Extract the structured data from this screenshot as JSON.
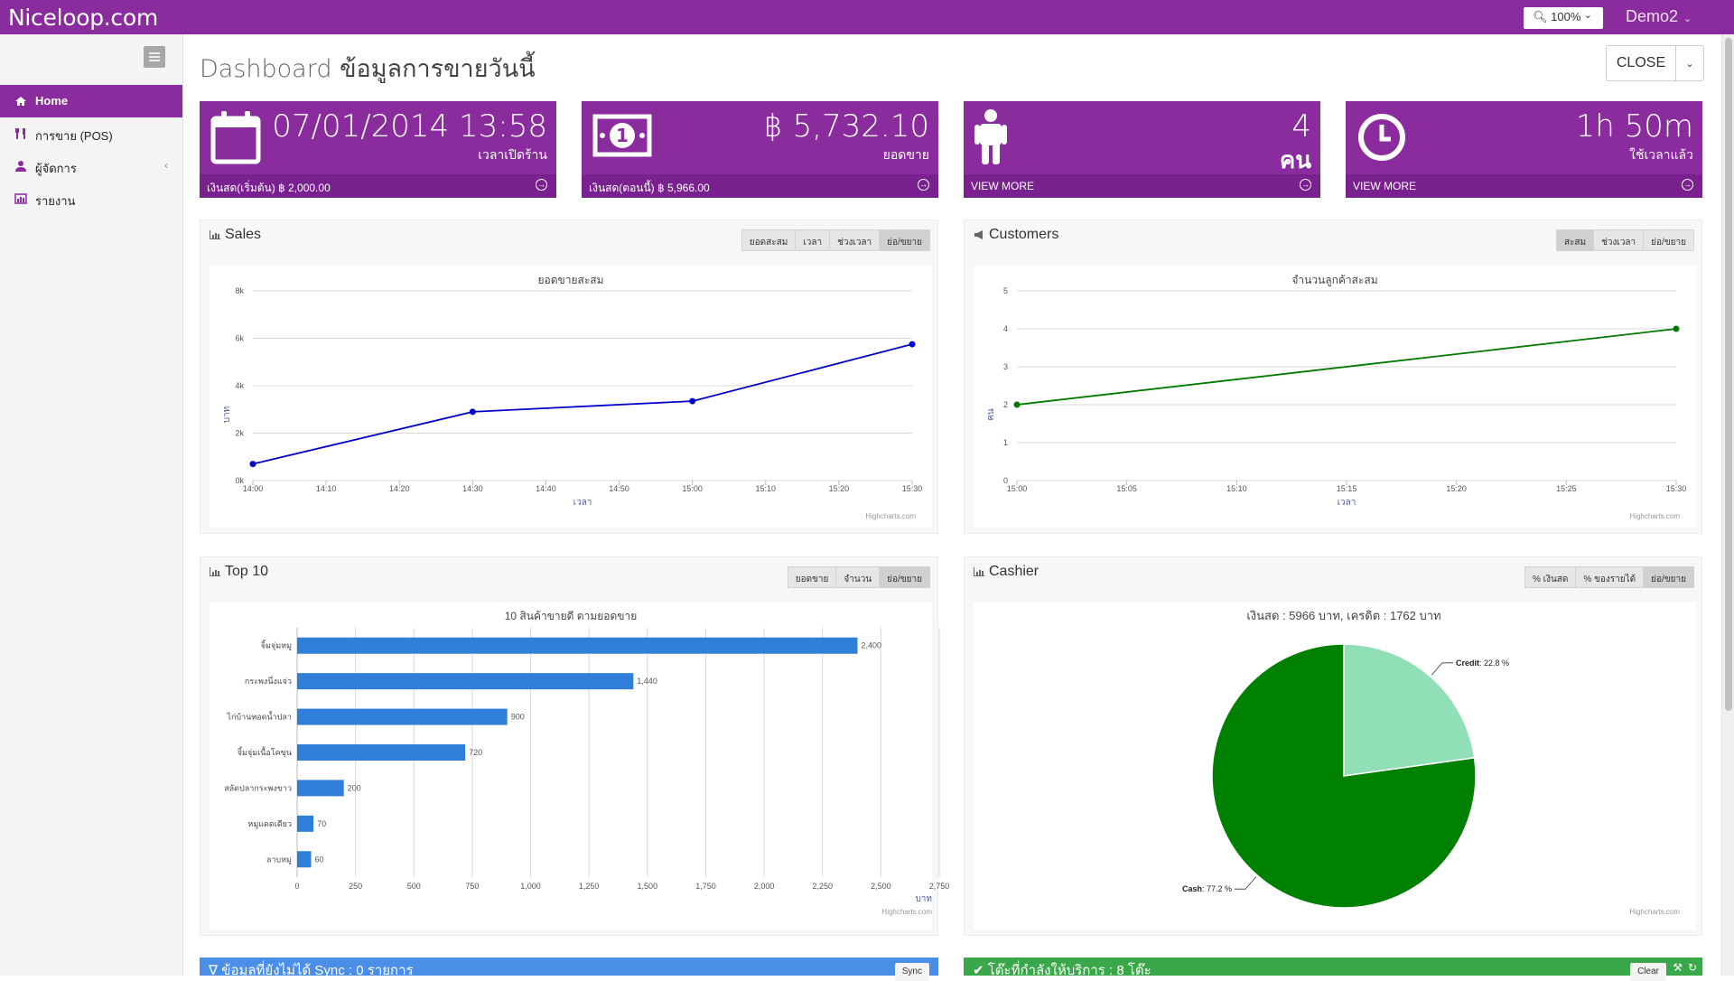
{
  "topbar": {
    "brand": "Niceloop.com",
    "zoom": "100%",
    "user": "Demo2"
  },
  "sidebar": {
    "items": [
      {
        "label": "Home",
        "icon": "home-icon",
        "active": true
      },
      {
        "label": "การขาย (POS)",
        "icon": "cutlery-icon"
      },
      {
        "label": "ผู้จัดการ",
        "icon": "user-icon",
        "has_submenu": true
      },
      {
        "label": "รายงาน",
        "icon": "bar-chart-icon"
      }
    ]
  },
  "header": {
    "title_en": "Dashboard",
    "title_th": "ข้อมูลการขายวันนี้",
    "close_label": "CLOSE"
  },
  "tiles": [
    {
      "icon": "calendar-icon",
      "big": "07/01/2014 13:58",
      "sub": "เวลาเปิดร้าน",
      "footer": "เงินสด(เริ่มต้น) ฿ 2,000.00"
    },
    {
      "icon": "money-icon",
      "big": "฿ 5,732.10",
      "sub": "ยอดขาย",
      "footer": "เงินสด(ตอนนี้) ฿ 5,966.00"
    },
    {
      "icon": "person-icon",
      "big": "4",
      "sub": "คน",
      "footer": "VIEW MORE"
    },
    {
      "icon": "clock-icon",
      "big": "1h 50m",
      "sub": "ใช้เวลาแล้ว",
      "footer": "VIEW MORE"
    }
  ],
  "panels": {
    "sales": {
      "title": "Sales",
      "buttons": [
        "ยอดสะสม",
        "เวลา",
        "ช่วงเวลา",
        "ย่อ/ขยาย"
      ],
      "active": 3
    },
    "customers": {
      "title": "Customers",
      "buttons": [
        "สะสม",
        "ช่วงเวลา",
        "ย่อ/ขยาย"
      ],
      "active": 0
    },
    "top10": {
      "title": "Top 10",
      "buttons": [
        "ยอดขาย",
        "จำนวน",
        "ย่อ/ขยาย"
      ],
      "active": 2
    },
    "cashier": {
      "title": "Cashier",
      "buttons": [
        "% เงินสด",
        "% ของรายได้",
        "ย่อ/ขยาย"
      ],
      "active": 2
    }
  },
  "credit_text": "Highcharts.com",
  "bottom": {
    "left_text": "ข้อมูลที่ยังไม่ได้ Sync : 0 รายการ",
    "left_button": "Sync",
    "right_text": "โต๊ะที่กำลังให้บริการ : 8 โต๊ะ",
    "right_button": "Clear"
  },
  "colors": {
    "brand": "#8a2b9e",
    "sales_line": "#0000cc",
    "customers_line": "#007a00",
    "bar": "#2f7ed8",
    "pie_cash": "#008000",
    "pie_credit": "#90dfb7",
    "bottom_left": "#4b8ee8",
    "bottom_right": "#3aa84a"
  },
  "chart_data": [
    {
      "type": "line",
      "title": "ยอดขายสะสม",
      "xlabel": "เวลา",
      "ylabel": "บาท",
      "x": [
        "14:00",
        "14:30",
        "15:00",
        "15:30"
      ],
      "x_ticks": [
        "14:00",
        "14:10",
        "14:20",
        "14:30",
        "14:40",
        "14:50",
        "15:00",
        "15:10",
        "15:20",
        "15:30"
      ],
      "y_ticks": [
        "0k",
        "2k",
        "4k",
        "6k",
        "8k"
      ],
      "ylim": [
        0,
        8000
      ],
      "series": [
        {
          "values": [
            700,
            2900,
            3350,
            5750
          ]
        }
      ]
    },
    {
      "type": "line",
      "title": "จำนวนลูกค้าสะสม",
      "xlabel": "เวลา",
      "ylabel": "คน",
      "x": [
        "15:00",
        "15:30"
      ],
      "x_ticks": [
        "15:00",
        "15:05",
        "15:10",
        "15:15",
        "15:20",
        "15:25",
        "15:30"
      ],
      "y_ticks": [
        "0",
        "1",
        "2",
        "3",
        "4",
        "5"
      ],
      "ylim": [
        0,
        5
      ],
      "series": [
        {
          "values": [
            2,
            4
          ]
        }
      ]
    },
    {
      "type": "bar",
      "title": "10 สินค้าขายดี ตามยอดขาย",
      "xlabel": "บาท",
      "categories": [
        "จิ้มจุ่มหมู",
        "กระพงนึ่งแจ่ว",
        "ไก่บ้านทอดน้ำปลา",
        "จิ้มจุ่มเนื้อโคขุน",
        "สลัดปลากระพงขาว",
        "หมูแดดเดียว",
        "ลาบหมู"
      ],
      "values": [
        2400,
        1440,
        900,
        720,
        200,
        70,
        60
      ],
      "data_labels": [
        "2,400",
        "1,440",
        "900",
        "720",
        "200",
        "70",
        "60"
      ],
      "x_ticks": [
        "0",
        "250",
        "500",
        "750",
        "1,000",
        "1,250",
        "1,500",
        "1,750",
        "2,000",
        "2,250",
        "2,500",
        "2,750"
      ],
      "xlim": [
        0,
        2750
      ]
    },
    {
      "type": "pie",
      "title": "เงินสด : 5966 บาท, เครดิต : 1762 บาท",
      "slices": [
        {
          "name": "Credit",
          "value": 22.8,
          "label_suffix": ": 22.8 %"
        },
        {
          "name": "Cash",
          "value": 77.2,
          "label_suffix": ": 77.2 %"
        }
      ]
    }
  ]
}
